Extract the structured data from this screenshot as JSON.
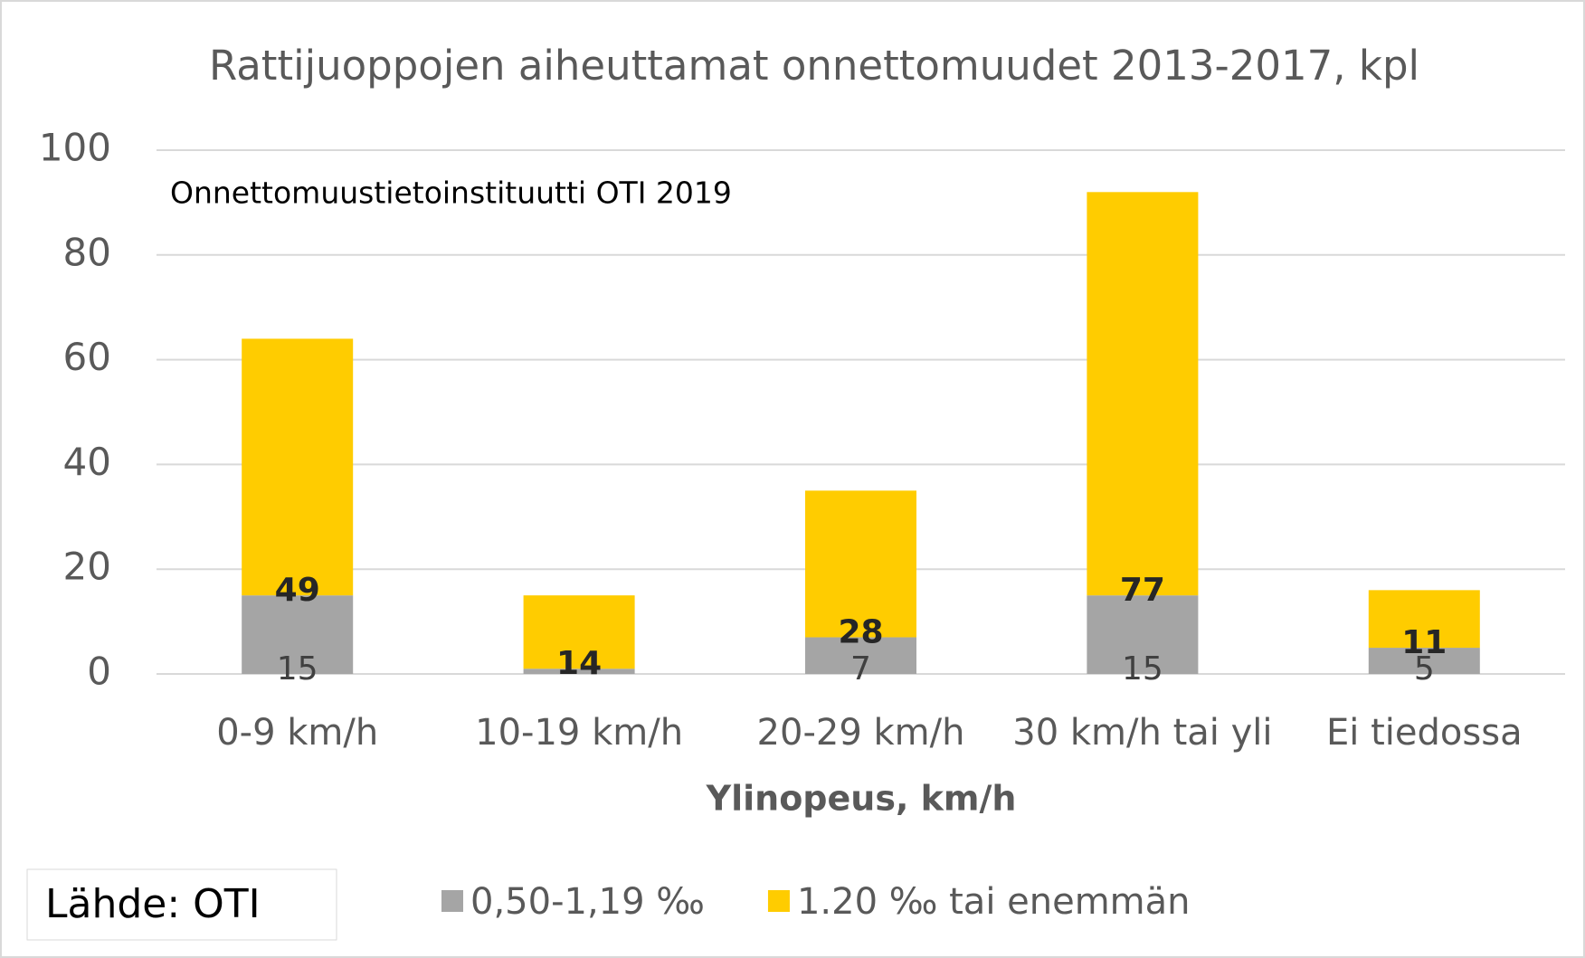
{
  "chart_data": {
    "type": "bar",
    "stacked": true,
    "title": "Rattijuoppojen aiheuttamat onnettomuudet 2013-2017, kpl",
    "annotation": "Onnettomuustietoinstituutti OTI 2019",
    "source": "Lähde: OTI",
    "x_label": "Ylinopeus, km/h",
    "categories": [
      "0-9 km/h",
      "10-19 km/h",
      "20-29 km/h",
      "30 km/h tai yli",
      "Ei tiedossa"
    ],
    "series": [
      {
        "name": "0,50-1,19 ‰",
        "color": "#a5a5a5",
        "values": [
          15,
          1,
          7,
          15,
          5
        ],
        "value_labels": [
          "15",
          null,
          "7",
          "15",
          "5"
        ]
      },
      {
        "name": "1.20 ‰ tai enemmän",
        "color": "#ffcc00",
        "values": [
          49,
          14,
          28,
          77,
          11
        ]
      }
    ],
    "ylim": [
      0,
      100
    ],
    "yticks": [
      0,
      20,
      40,
      60,
      80,
      100
    ],
    "grid": true
  }
}
